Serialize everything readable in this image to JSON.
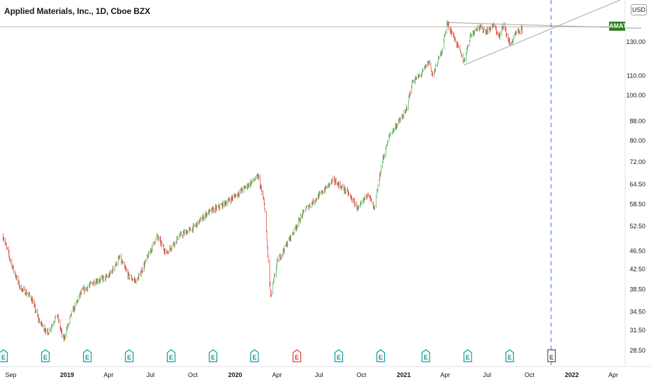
{
  "header": {
    "title": "Applied Materials, Inc., 1D, Cboe BZX",
    "currency": "USD",
    "top_right_tick": "1"
  },
  "ticker_badge": "AMAT",
  "chart_data": {
    "type": "candlestick",
    "symbol": "AMAT",
    "title": "Applied Materials, Inc., 1D, Cboe BZX",
    "scale": "log",
    "ylim": [
      27,
      160
    ],
    "y_ticks": [
      "130.00",
      "110.00",
      "100.00",
      "88.00",
      "80.00",
      "72.00",
      "64.50",
      "58.50",
      "52.50",
      "46.50",
      "42.50",
      "38.50",
      "34.50",
      "31.50",
      "28.50"
    ],
    "x_ticks": [
      "Sep",
      "2019",
      "Apr",
      "Jul",
      "Oct",
      "2020",
      "Apr",
      "Jul",
      "Oct",
      "2021",
      "Apr",
      "Jul",
      "Oct",
      "2022",
      "Apr"
    ],
    "x_tick_bold": [
      "2019",
      "2020",
      "2021",
      "2022"
    ],
    "last_price": 140,
    "price_path": [
      [
        "2018-08-15",
        50
      ],
      [
        "2018-09-01",
        44
      ],
      [
        "2018-09-20",
        39
      ],
      [
        "2018-10-15",
        37
      ],
      [
        "2018-11-01",
        33
      ],
      [
        "2018-11-20",
        31
      ],
      [
        "2018-12-10",
        34
      ],
      [
        "2018-12-24",
        30
      ],
      [
        "2019-01-10",
        34
      ],
      [
        "2019-02-01",
        38
      ],
      [
        "2019-03-01",
        40
      ],
      [
        "2019-04-01",
        41
      ],
      [
        "2019-04-25",
        45
      ],
      [
        "2019-05-15",
        41
      ],
      [
        "2019-06-01",
        40
      ],
      [
        "2019-06-20",
        44
      ],
      [
        "2019-07-15",
        50
      ],
      [
        "2019-08-05",
        46
      ],
      [
        "2019-09-01",
        50
      ],
      [
        "2019-10-01",
        52
      ],
      [
        "2019-11-01",
        56
      ],
      [
        "2019-12-01",
        58
      ],
      [
        "2020-01-01",
        61
      ],
      [
        "2020-02-20",
        67
      ],
      [
        "2020-03-05",
        58
      ],
      [
        "2020-03-18",
        37
      ],
      [
        "2020-04-01",
        44
      ],
      [
        "2020-05-01",
        50
      ],
      [
        "2020-06-01",
        57
      ],
      [
        "2020-07-01",
        61
      ],
      [
        "2020-08-01",
        66
      ],
      [
        "2020-09-01",
        62
      ],
      [
        "2020-09-25",
        57
      ],
      [
        "2020-10-15",
        62
      ],
      [
        "2020-10-29",
        57
      ],
      [
        "2020-11-15",
        72
      ],
      [
        "2020-12-01",
        82
      ],
      [
        "2020-12-15",
        86
      ],
      [
        "2021-01-05",
        92
      ],
      [
        "2021-01-20",
        107
      ],
      [
        "2021-02-05",
        110
      ],
      [
        "2021-02-25",
        118
      ],
      [
        "2021-03-05",
        110
      ],
      [
        "2021-03-25",
        125
      ],
      [
        "2021-04-05",
        143
      ],
      [
        "2021-04-20",
        133
      ],
      [
        "2021-05-12",
        118
      ],
      [
        "2021-05-25",
        134
      ],
      [
        "2021-06-10",
        140
      ],
      [
        "2021-06-30",
        137
      ],
      [
        "2021-07-15",
        141
      ],
      [
        "2021-07-28",
        133
      ],
      [
        "2021-08-05",
        142
      ],
      [
        "2021-08-20",
        128
      ],
      [
        "2021-09-01",
        135
      ],
      [
        "2021-09-15",
        138
      ]
    ],
    "drawings": [
      {
        "type": "horizontal-line",
        "price": 140
      },
      {
        "type": "trend-line",
        "from": [
          "2021-04-05",
          143
        ],
        "to": [
          "2022-06-01",
          139
        ]
      },
      {
        "type": "trend-line",
        "from": [
          "2021-05-12",
          116
        ],
        "to": [
          "2022-05-01",
          162
        ]
      },
      {
        "type": "vertical-dashed-line",
        "date": "2021-11-17"
      }
    ],
    "events": [
      {
        "date": "2018-08-16",
        "label": "E",
        "kind": "earnings"
      },
      {
        "date": "2018-11-15",
        "label": "E",
        "kind": "earnings"
      },
      {
        "date": "2019-02-14",
        "label": "E",
        "kind": "earnings"
      },
      {
        "date": "2019-05-16",
        "label": "E",
        "kind": "earnings"
      },
      {
        "date": "2019-08-15",
        "label": "E",
        "kind": "earnings"
      },
      {
        "date": "2019-11-14",
        "label": "E",
        "kind": "earnings"
      },
      {
        "date": "2020-02-12",
        "label": "E",
        "kind": "earnings"
      },
      {
        "date": "2020-05-14",
        "label": "E",
        "kind": "earnings-miss"
      },
      {
        "date": "2020-08-13",
        "label": "E",
        "kind": "earnings"
      },
      {
        "date": "2020-11-12",
        "label": "E",
        "kind": "earnings"
      },
      {
        "date": "2021-02-18",
        "label": "E",
        "kind": "earnings"
      },
      {
        "date": "2021-05-20",
        "label": "E",
        "kind": "earnings"
      },
      {
        "date": "2021-08-19",
        "label": "E",
        "kind": "earnings"
      },
      {
        "date": "2021-11-18",
        "label": "E",
        "kind": "upcoming"
      }
    ],
    "colors": {
      "up": "#26a69a",
      "down": "#ef5350",
      "up_bar": "#4caf50",
      "down_bar": "#e53935",
      "earnings": "#0e9aa0",
      "earnings_miss": "#e53935",
      "upcoming": "#555555",
      "badge": "#2e7d1f",
      "dashed": "#4a90e2",
      "drawing": "#9a9ea8"
    }
  }
}
